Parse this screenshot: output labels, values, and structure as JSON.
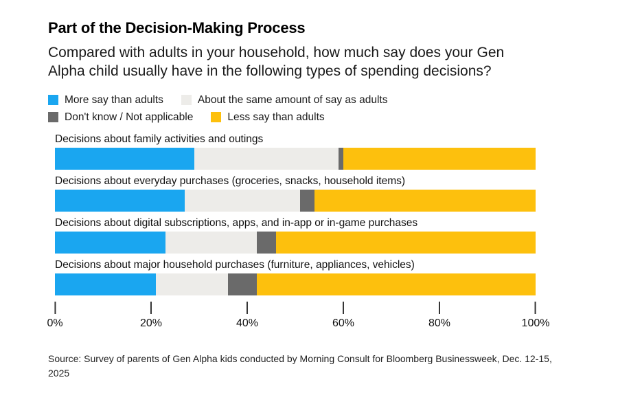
{
  "header": {
    "title": "Part of the Decision-Making Process",
    "subtitle": "Compared with adults in your household, how much say does your Gen Alpha child usually have in the following types of spending decisions?"
  },
  "chart_data": {
    "type": "bar",
    "orientation": "horizontal",
    "stacked": true,
    "unit": "%",
    "title": "Part of the Decision-Making Process",
    "categories": [
      "Decisions about family activities and outings",
      "Decisions about everyday purchases (groceries, snacks, household items)",
      "Decisions about digital subscriptions, apps, and in-app or in-game purchases",
      "Decisions about major household purchases (furniture, appliances, vehicles)"
    ],
    "series": [
      {
        "name": "More say than adults",
        "color": "#1AA6F0",
        "values": [
          29,
          27,
          23,
          21
        ]
      },
      {
        "name": "About the same amount of say as adults",
        "color": "#EDECE9",
        "values": [
          30,
          24,
          19,
          15
        ]
      },
      {
        "name": "Don't know / Not applicable",
        "color": "#6A6A6A",
        "values": [
          1,
          3,
          4,
          6
        ]
      },
      {
        "name": "Less say than adults",
        "color": "#FDC00D",
        "values": [
          40,
          46,
          54,
          58
        ]
      }
    ],
    "x_axis": {
      "range": [
        0,
        100
      ],
      "tick_values": [
        0,
        20,
        40,
        60,
        80,
        100
      ],
      "tick_labels": [
        "0%",
        "20%",
        "40%",
        "60%",
        "80%",
        "100%"
      ]
    },
    "grid": false,
    "legend_position": "top"
  },
  "footer": {
    "source": "Source: Survey of parents of Gen Alpha kids conducted by Morning Consult for Bloomberg Businessweek, Dec. 12-15, 2025"
  }
}
